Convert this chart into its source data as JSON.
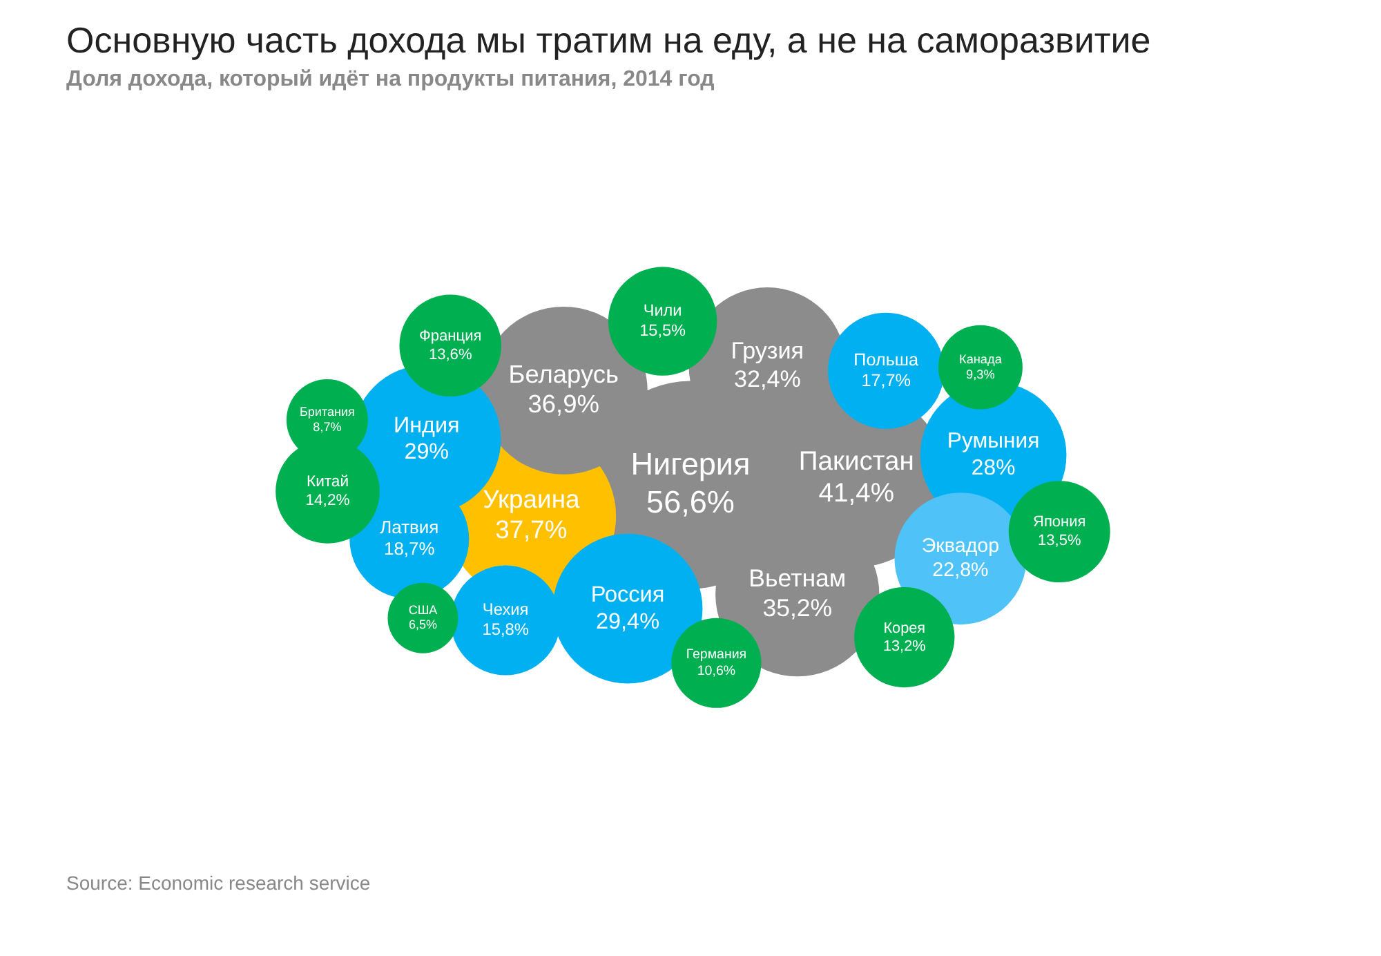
{
  "chart_data": {
    "type": "other",
    "title": "Основную часть дохода мы тратим на еду, а не на саморазвитие",
    "subtitle": "Доля дохода, который идёт на продукты питания,  2014 год",
    "annotations": [
      "Source: Economic research service"
    ],
    "categories": [
      "Нигерия",
      "Пакистан",
      "Украина",
      "Беларусь",
      "Вьетнам",
      "Грузия",
      "Россия",
      "Индия",
      "Румыния",
      "Эквадор",
      "Латвия",
      "Польша",
      "Чехия",
      "Чили",
      "Китай",
      "Франция",
      "Япония",
      "Корея",
      "Германия",
      "Канада",
      "Британия",
      "США"
    ],
    "values": [
      56.6,
      41.4,
      37.7,
      36.9,
      35.2,
      32.4,
      29.4,
      29,
      28,
      22.8,
      18.7,
      17.7,
      15.8,
      15.5,
      14.2,
      13.6,
      13.5,
      13.2,
      10.6,
      9.3,
      8.7,
      6.5
    ],
    "value_labels": [
      "56,6%",
      "41,4%",
      "37,7%",
      "36,9%",
      "35,2%",
      "32,4%",
      "29,4%",
      "29%",
      "28%",
      "22,8%",
      "18,7%",
      "17,7%",
      "15,8%",
      "15,5%",
      "14,2%",
      "13,6%",
      "13,5%",
      "13,2%",
      "10,6%",
      "9,3%",
      "8,7%",
      "6,5%"
    ],
    "colors": [
      "#8c8c8c",
      "#8c8c8c",
      "#ffc000",
      "#8c8c8c",
      "#8c8c8c",
      "#8c8c8c",
      "#00b0f0",
      "#00b0f0",
      "#00b0f0",
      "#4fc3f7",
      "#00b0f0",
      "#00b0f0",
      "#00b0f0",
      "#00b050",
      "#00b050",
      "#00b050",
      "#00b050",
      "#00b050",
      "#00b050",
      "#00b050",
      "#00b050",
      "#00b050"
    ]
  }
}
